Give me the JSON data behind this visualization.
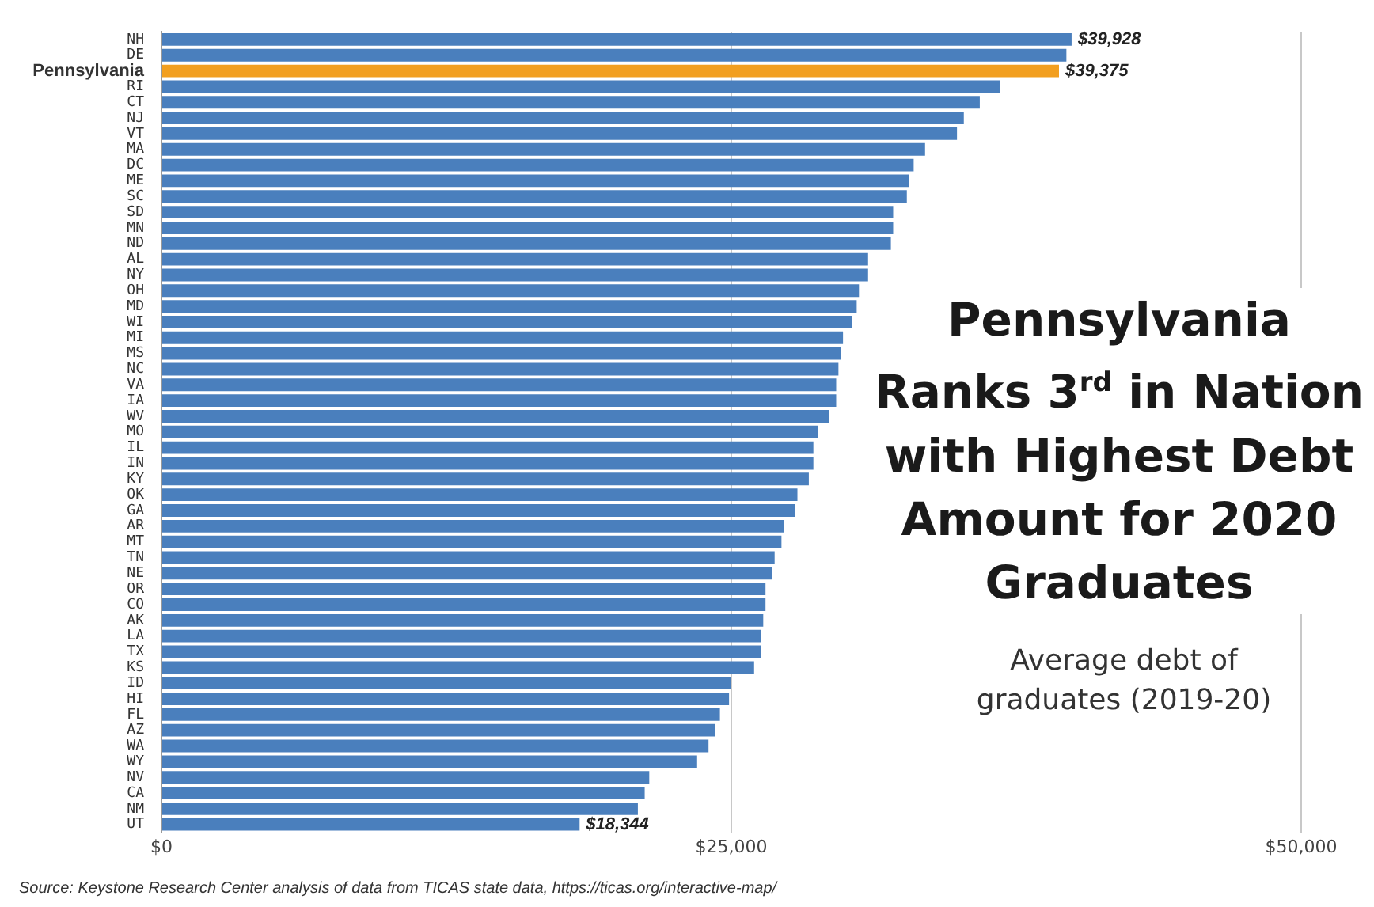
{
  "chart_data": {
    "type": "bar",
    "orientation": "horizontal",
    "title": "Pennsylvania Ranks 3$^{rd}$ in Nation with Highest Debt Amount for 2020 Graduates",
    "subtitle": "Average debt of graduates (2019-20)",
    "annotations": [
      "Source: Keystone Research Center analysis of data from TICAS state data, https://ticas.org/interactive-map/"
    ],
    "categories": [
      "NH",
      "DE",
      "Pennsylvania",
      "RI",
      "CT",
      "NJ",
      "VT",
      "MA",
      "DC",
      "ME",
      "SC",
      "SD",
      "MN",
      "ND",
      "AL",
      "NY",
      "OH",
      "MD",
      "WI",
      "MI",
      "MS",
      "NC",
      "VA",
      "IA",
      "WV",
      "MO",
      "IL",
      "IN",
      "KY",
      "OK",
      "GA",
      "AR",
      "MT",
      "TN",
      "NE",
      "OR",
      "CO",
      "AK",
      "LA",
      "TX",
      "KS",
      "ID",
      "HI",
      "FL",
      "AZ",
      "WA",
      "WY",
      "NV",
      "CA",
      "NM",
      "UT"
    ],
    "values": [
      39928,
      39700,
      39375,
      36800,
      35900,
      35200,
      34900,
      33500,
      33000,
      32800,
      32700,
      32100,
      32100,
      32000,
      31000,
      31000,
      30600,
      30500,
      30300,
      29900,
      29800,
      29700,
      29600,
      29600,
      29300,
      28800,
      28600,
      28600,
      28400,
      27900,
      27800,
      27300,
      27200,
      26900,
      26800,
      26500,
      26500,
      26400,
      26300,
      26300,
      26000,
      25000,
      24900,
      24500,
      24300,
      24000,
      23500,
      21400,
      21200,
      20900,
      18344
    ],
    "value_labels": [
      "$39,928",
      null,
      "$39,375",
      null,
      null,
      null,
      null,
      null,
      null,
      null,
      null,
      null,
      null,
      null,
      null,
      null,
      null,
      null,
      null,
      null,
      null,
      null,
      null,
      null,
      null,
      null,
      null,
      null,
      null,
      null,
      null,
      null,
      null,
      null,
      null,
      null,
      null,
      null,
      null,
      null,
      null,
      null,
      null,
      null,
      null,
      null,
      null,
      null,
      null,
      null,
      "$18,344"
    ],
    "colors": [
      "#4a7fbd",
      "#4a7fbd",
      "#f29f1f",
      "#4a7fbd",
      "#4a7fbd",
      "#4a7fbd",
      "#4a7fbd",
      "#4a7fbd",
      "#4a7fbd",
      "#4a7fbd",
      "#4a7fbd",
      "#4a7fbd",
      "#4a7fbd",
      "#4a7fbd",
      "#4a7fbd",
      "#4a7fbd",
      "#4a7fbd",
      "#4a7fbd",
      "#4a7fbd",
      "#4a7fbd",
      "#4a7fbd",
      "#4a7fbd",
      "#4a7fbd",
      "#4a7fbd",
      "#4a7fbd",
      "#4a7fbd",
      "#4a7fbd",
      "#4a7fbd",
      "#4a7fbd",
      "#4a7fbd",
      "#4a7fbd",
      "#4a7fbd",
      "#4a7fbd",
      "#4a7fbd",
      "#4a7fbd",
      "#4a7fbd",
      "#4a7fbd",
      "#4a7fbd",
      "#4a7fbd",
      "#4a7fbd",
      "#4a7fbd",
      "#4a7fbd",
      "#4a7fbd",
      "#4a7fbd",
      "#4a7fbd",
      "#4a7fbd",
      "#4a7fbd",
      "#4a7fbd",
      "#4a7fbd",
      "#4a7fbd",
      "#4a7fbd"
    ],
    "xlim": [
      0,
      50000
    ],
    "xticks": [
      {
        "value": 0,
        "label": "$0"
      },
      {
        "value": 25000,
        "label": "$25,000"
      },
      {
        "value": 50000,
        "label": "$50,000"
      }
    ],
    "grid": "x",
    "legend": false
  }
}
